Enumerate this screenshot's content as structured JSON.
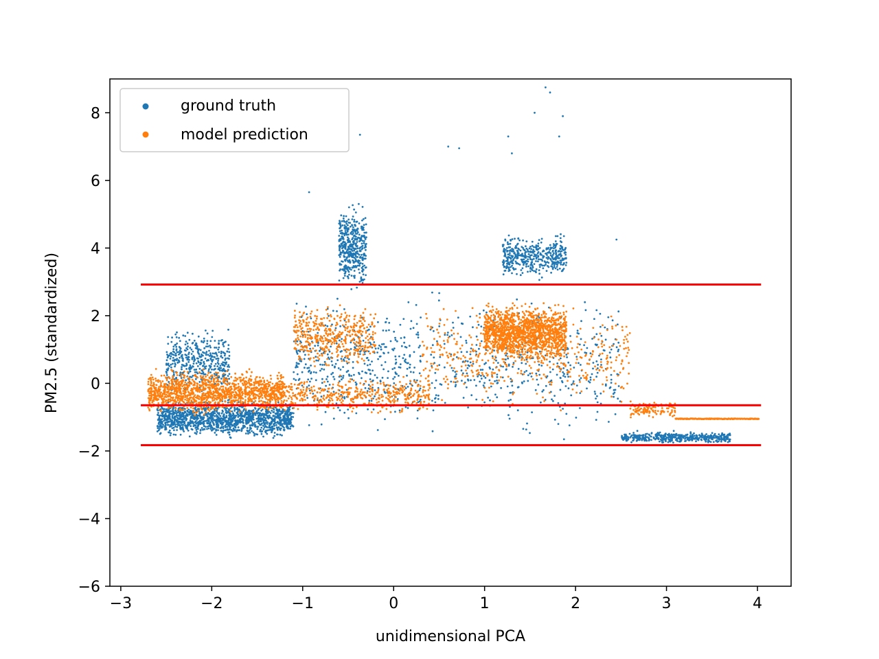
{
  "chart_data": {
    "type": "scatter",
    "xlabel": "unidimensional PCA",
    "ylabel": "PM2.5 (standardized)",
    "xlim": [
      -3.12,
      4.37
    ],
    "ylim": [
      -6,
      9
    ],
    "xticks": [
      -3,
      -2,
      -1,
      0,
      1,
      2,
      3,
      4
    ],
    "yticks": [
      -6,
      -4,
      -2,
      0,
      2,
      4,
      6,
      8
    ],
    "xtick_labels": [
      "−3",
      "−2",
      "−1",
      "0",
      "1",
      "2",
      "3",
      "4"
    ],
    "ytick_labels": [
      "−6",
      "−4",
      "−2",
      "0",
      "2",
      "4",
      "6",
      "8"
    ],
    "grid": false,
    "legend_position": "top-left",
    "colors": {
      "ground_truth": "#1f77b4",
      "model_prediction": "#ff7f0e",
      "reference_lines": "#ff0000"
    },
    "series": [
      {
        "name": "ground truth",
        "color": "#1f77b4",
        "clusters": [
          {
            "x": [
              -2.6,
              -1.1
            ],
            "y": [
              -1.7,
              -0.4
            ],
            "density": "high"
          },
          {
            "x": [
              -2.5,
              -1.8
            ],
            "y": [
              -0.5,
              1.8
            ],
            "density": "medium"
          },
          {
            "x": [
              -1.1,
              0.3
            ],
            "y": [
              -1.7,
              2.8
            ],
            "density": "medium"
          },
          {
            "x": [
              -0.6,
              -0.3
            ],
            "y": [
              2.5,
              5.5
            ],
            "density": "medium"
          },
          {
            "x": [
              0.4,
              2.5
            ],
            "y": [
              -1.8,
              3.0
            ],
            "density": "medium"
          },
          {
            "x": [
              1.2,
              1.9
            ],
            "y": [
              3.0,
              4.5
            ],
            "density": "medium"
          },
          {
            "x": [
              2.5,
              3.7
            ],
            "y": [
              -1.8,
              -1.4
            ],
            "density": "medium"
          }
        ],
        "outliers": [
          [
            -0.37,
            7.35
          ],
          [
            0.6,
            7.0
          ],
          [
            0.72,
            6.95
          ],
          [
            1.26,
            7.3
          ],
          [
            1.3,
            6.8
          ],
          [
            1.55,
            8.0
          ],
          [
            1.67,
            8.75
          ],
          [
            1.72,
            8.6
          ],
          [
            1.82,
            7.3
          ],
          [
            1.86,
            7.9
          ],
          [
            -0.93,
            5.65
          ],
          [
            2.45,
            4.25
          ],
          [
            3.05,
            -1.6
          ]
        ]
      },
      {
        "name": "model prediction",
        "color": "#ff7f0e",
        "clusters": [
          {
            "x": [
              -2.7,
              -1.2
            ],
            "y": [
              -1.0,
              0.5
            ],
            "density": "high"
          },
          {
            "x": [
              -1.2,
              0.4
            ],
            "y": [
              -1.0,
              0.3
            ],
            "density": "medium"
          },
          {
            "x": [
              -1.1,
              -0.2
            ],
            "y": [
              0.3,
              2.5
            ],
            "density": "medium"
          },
          {
            "x": [
              0.3,
              2.6
            ],
            "y": [
              -1.0,
              2.6
            ],
            "density": "medium"
          },
          {
            "x": [
              1.0,
              1.9
            ],
            "y": [
              0.5,
              2.5
            ],
            "density": "high"
          },
          {
            "x": [
              2.6,
              3.1
            ],
            "y": [
              -1.05,
              -0.5
            ],
            "density": "low"
          },
          {
            "x": [
              3.1,
              4.02
            ],
            "y": [
              -1.06,
              -1.04
            ],
            "density": "line"
          }
        ]
      }
    ],
    "reference_lines": [
      {
        "y": 2.92,
        "x": [
          -2.78,
          4.04
        ]
      },
      {
        "y": -0.65,
        "x": [
          -2.78,
          4.04
        ]
      },
      {
        "y": -1.83,
        "x": [
          -2.78,
          4.04
        ]
      }
    ]
  }
}
